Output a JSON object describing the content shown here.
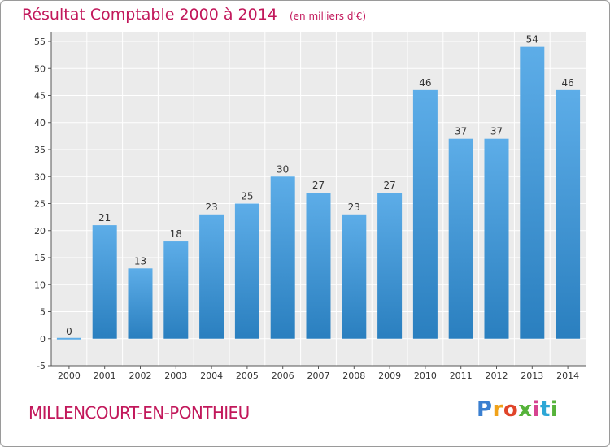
{
  "header": {
    "title": "Résultat Comptable 2000 à 2014",
    "unit": "(en milliers d'€)"
  },
  "footer": {
    "commune": "MILLENCOURT-EN-PONTHIEU",
    "logo_text": "Proxiti"
  },
  "colors": {
    "bar_top": "#5dade8",
    "bar_bottom": "#2a7fbf",
    "plot_bg": "#ebebeb",
    "grid": "#ffffff",
    "title": "#c2185b"
  },
  "chart_data": {
    "type": "bar",
    "title": "Résultat Comptable 2000 à 2014",
    "subtitle": "(en milliers d'€)",
    "xlabel": "",
    "ylabel": "",
    "categories": [
      "2000",
      "2001",
      "2002",
      "2003",
      "2004",
      "2005",
      "2006",
      "2007",
      "2008",
      "2009",
      "2010",
      "2011",
      "2012",
      "2013",
      "2014"
    ],
    "values": [
      0,
      21,
      13,
      18,
      23,
      25,
      30,
      27,
      23,
      27,
      46,
      37,
      37,
      54,
      46
    ],
    "data_labels": [
      "0",
      "21",
      "13",
      "18",
      "23",
      "25",
      "30",
      "27",
      "23",
      "27",
      "46",
      "37",
      "37",
      "54",
      "46"
    ],
    "yticks": [
      -5,
      0,
      5,
      10,
      15,
      20,
      25,
      30,
      35,
      40,
      45,
      50,
      55
    ],
    "ytick_labels": [
      "-5",
      "0",
      "5",
      "10",
      "15",
      "20",
      "25",
      "30",
      "35",
      "40",
      "45",
      "50",
      "55"
    ],
    "ylim": [
      -5,
      55
    ],
    "grid": true,
    "legend": "none"
  }
}
